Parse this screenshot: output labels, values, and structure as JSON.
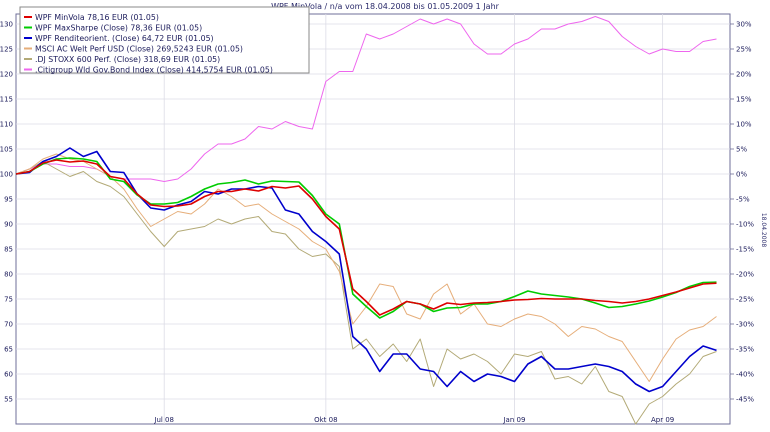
{
  "chart_data": {
    "type": "line",
    "title": "WPF MinVola / n/a vom 18.04.2008 bis 01.05.2009 1 Jahr",
    "xlabel": "",
    "ylabel": "",
    "right_axis_label": "18.04.2008",
    "x_tick_labels": [
      "Jul 08",
      "Okt 08",
      "Jan 09",
      "Apr 09"
    ],
    "x_tick_positions": [
      11,
      23,
      37,
      48
    ],
    "xlim": [
      0,
      53
    ],
    "left_ylim": [
      50,
      132
    ],
    "left_ticks": [
      55,
      60,
      65,
      70,
      75,
      80,
      85,
      90,
      95,
      100,
      105,
      110,
      115,
      120,
      125,
      130
    ],
    "right_ylim": [
      -50,
      32
    ],
    "right_ticks": [
      30,
      25,
      20,
      15,
      10,
      5,
      0,
      -5,
      -10,
      -15,
      -20,
      -25,
      -30,
      -35,
      -40,
      -45
    ],
    "right_tick_labels": [
      "30%",
      "25%",
      "20%",
      "15%",
      "10%",
      "5%",
      "0%",
      "-5%",
      "-10%",
      "-15%",
      "-20%",
      "-25%",
      "-30%",
      "-35%",
      "-40%",
      "-45%"
    ],
    "grid": true,
    "legend_placement": "top-left",
    "x": [
      0,
      1,
      2,
      3,
      4,
      5,
      6,
      7,
      8,
      9,
      10,
      11,
      12,
      13,
      14,
      15,
      16,
      17,
      18,
      19,
      20,
      21,
      22,
      23,
      24,
      25,
      26,
      27,
      28,
      29,
      30,
      31,
      32,
      33,
      34,
      35,
      36,
      37,
      38,
      39,
      40,
      41,
      42,
      43,
      44,
      45,
      46,
      47,
      48,
      49,
      50,
      51,
      52
    ],
    "series": [
      {
        "name": "WPF MinVola 78,16 EUR (01.05)",
        "color": "#dd0000",
        "width": 1.6,
        "values": [
          100,
          100.5,
          102.2,
          102.8,
          102.4,
          102.6,
          102,
          99.5,
          99,
          96,
          93.8,
          93.5,
          93.6,
          94,
          95.5,
          96.5,
          96.5,
          97,
          96.6,
          97.5,
          97.2,
          97.6,
          95,
          91.5,
          89,
          77,
          74.5,
          71.8,
          73,
          74.5,
          74,
          73,
          74.2,
          73.9,
          74.2,
          74.3,
          74.5,
          74.8,
          74.9,
          75.1,
          75,
          75,
          75,
          74.7,
          74.5,
          74.2,
          74.5,
          75,
          75.7,
          76.4,
          77.2,
          78,
          78.16
        ]
      },
      {
        "name": "WPF MaxSharpe (Close) 78,36 EUR (01.05)",
        "color": "#00cc00",
        "width": 1.6,
        "values": [
          100,
          100.5,
          102,
          103,
          103.2,
          103,
          102.5,
          99,
          98.5,
          95.8,
          94,
          94,
          94.3,
          95.5,
          97,
          98,
          98.3,
          98.8,
          98,
          98.6,
          98.5,
          98.4,
          95.7,
          92,
          90,
          76,
          73.5,
          71.2,
          72.5,
          74.5,
          74,
          72.5,
          73.2,
          73.3,
          74,
          74,
          74.5,
          75.5,
          76.6,
          76,
          75.7,
          75.4,
          75,
          74.2,
          73.3,
          73.5,
          74,
          74.6,
          75.4,
          76.3,
          77.5,
          78.3,
          78.36
        ]
      },
      {
        "name": "WPF Renditeorient. (Close) 64,72 EUR (01.05)",
        "color": "#0000cc",
        "width": 1.6,
        "values": [
          100,
          100.3,
          102.5,
          103.5,
          105.2,
          103.5,
          104.5,
          100.5,
          100.3,
          96,
          93.2,
          92.8,
          93.8,
          94.5,
          96.5,
          96,
          97,
          97,
          97.5,
          97.2,
          92.8,
          92,
          88.5,
          86.5,
          84,
          67.5,
          65,
          60.5,
          64,
          64,
          61,
          60.5,
          57.5,
          60.5,
          58.5,
          60,
          59.5,
          58.5,
          62,
          63.5,
          61,
          61,
          61.5,
          62,
          61.5,
          60.5,
          58,
          56.5,
          57.5,
          60.5,
          63.5,
          65.6,
          64.72
        ]
      },
      {
        "name": "MSCI AC Welt Perf USD (Close) 269,5243 EUR (01.05)",
        "color": "#e6ae7a",
        "width": 1,
        "values": [
          100,
          101,
          103,
          104,
          103,
          102.5,
          101,
          99.5,
          97,
          93,
          89.5,
          91,
          92.5,
          92,
          94,
          97,
          95.5,
          93.5,
          94,
          92,
          90.5,
          89,
          86.5,
          85,
          80.5,
          70,
          73.5,
          78,
          77.5,
          72,
          71,
          76,
          78,
          72,
          74,
          70,
          69.5,
          71,
          72,
          71.5,
          70,
          67.5,
          69.5,
          69,
          67.5,
          66.5,
          62.5,
          58.5,
          63,
          67,
          68.8,
          69.5,
          71.5
        ]
      },
      {
        "name": ".DJ STOXX 600 Perf. (Close) 318,69 EUR (01.05)",
        "color": "#b3aa77",
        "width": 1,
        "values": [
          100,
          101,
          102.5,
          101,
          99.5,
          100.5,
          98.5,
          97.5,
          95.5,
          92,
          88.5,
          85.5,
          88.5,
          89,
          89.5,
          91,
          90,
          91,
          91.5,
          88.5,
          88,
          85,
          83.5,
          84,
          81.5,
          65,
          67,
          63.5,
          66,
          62.5,
          67,
          57.5,
          65,
          63,
          64,
          62.5,
          60,
          64,
          63.5,
          64.5,
          59,
          59.5,
          58,
          61.5,
          56.5,
          55.5,
          50,
          54,
          55.5,
          58,
          60,
          63.5,
          64.5
        ]
      },
      {
        "name": ".Citigroup Wld Gov.Bond Index (Close) 414,5754 EUR (01.05)",
        "color": "#ee66ee",
        "width": 1,
        "values": [
          100,
          101,
          102,
          102,
          101.5,
          101.5,
          101,
          99.5,
          99,
          99,
          99,
          98.5,
          99,
          101,
          104,
          106,
          106,
          107,
          109.5,
          109,
          110.5,
          109.5,
          109,
          118.5,
          120.5,
          120.5,
          128,
          127,
          128,
          129.5,
          131,
          130,
          131,
          130,
          126,
          124,
          124,
          126,
          127,
          129,
          129,
          130,
          130.5,
          131.5,
          130.5,
          127.5,
          125.5,
          124,
          125,
          124.5,
          124.5,
          126.5,
          127
        ]
      }
    ]
  }
}
